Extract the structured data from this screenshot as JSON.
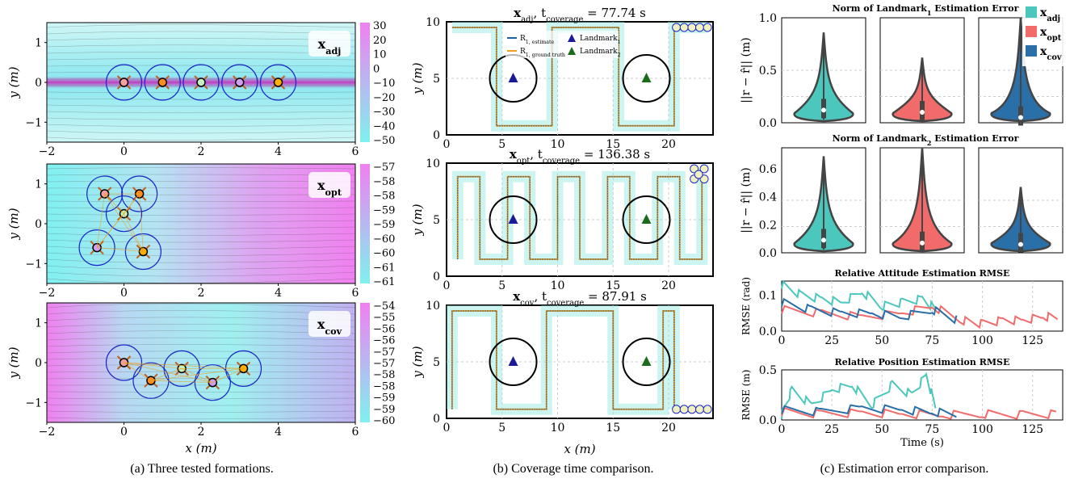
{
  "captions": {
    "a": "(a) Three tested formations.",
    "b": "(b) Coverage time comparison.",
    "c": "(c) Estimation error comparison."
  },
  "chart_data": [
    {
      "id": "a",
      "type": "heatmap",
      "xlabel": "x (m)",
      "ylabel": "y (m)",
      "xlim": [
        -2,
        6
      ],
      "ylim": [
        -1.5,
        1.5
      ],
      "xticks": [
        "−2",
        "0",
        "2",
        "4",
        "6"
      ],
      "yticks": [
        "−1",
        "0",
        "1"
      ],
      "panels": [
        {
          "label": "x",
          "sub": "adj",
          "colorbar": [
            "30",
            "20",
            "10",
            "0",
            "−10",
            "−20",
            "−30",
            "−40",
            "−50"
          ],
          "colors": [
            "#f080f0",
            "#9fdff0",
            "#7fe7f0"
          ],
          "agents": [
            [
              0,
              0
            ],
            [
              1,
              0
            ],
            [
              2,
              0
            ],
            [
              3,
              0
            ],
            [
              4,
              0
            ]
          ],
          "agent_colors": [
            "#f3a0a0",
            "#ff8c1a",
            "#c7f0c0",
            "#d0a0f0",
            "#ffb000"
          ]
        },
        {
          "label": "x",
          "sub": "opt",
          "colorbar": [
            "−57",
            "−58",
            "−58",
            "−59",
            "−59",
            "−60",
            "−60",
            "−61",
            "−61"
          ],
          "colors": [
            "#7ff0f0",
            "#b0dff0",
            "#f080f0"
          ],
          "agents": [
            [
              -0.5,
              0.75
            ],
            [
              0.4,
              0.75
            ],
            [
              0,
              0.25
            ],
            [
              -0.7,
              -0.6
            ],
            [
              0.5,
              -0.7
            ]
          ],
          "agent_colors": [
            "#f3a0a0",
            "#ff8c1a",
            "#c7f0c0",
            "#d0a0f0",
            "#ffb000"
          ]
        },
        {
          "label": "x",
          "sub": "cov",
          "colorbar": [
            "−54",
            "−55",
            "−56",
            "−56",
            "−57",
            "−57",
            "−58",
            "−58",
            "−59",
            "−59",
            "−60"
          ],
          "colors": [
            "#f080f0",
            "#a0e0f0",
            "#7ff0f0"
          ],
          "agents": [
            [
              0,
              0
            ],
            [
              0.7,
              -0.45
            ],
            [
              1.5,
              -0.15
            ],
            [
              2.3,
              -0.5
            ],
            [
              3.1,
              -0.15
            ]
          ],
          "agent_colors": [
            "#f3a0a0",
            "#ff8c1a",
            "#c7f0c0",
            "#d0a0f0",
            "#ffb000"
          ]
        }
      ]
    },
    {
      "id": "b",
      "type": "line",
      "xlabel": "x (m)",
      "ylabel": "y (m)",
      "xlim": [
        0,
        24
      ],
      "ylim": [
        0,
        10
      ],
      "xticks": [
        "0",
        "5",
        "10",
        "15",
        "20"
      ],
      "yticks": [
        "0",
        "5",
        "10"
      ],
      "landmarks": [
        {
          "name": "Landmark1",
          "x": 6,
          "y": 5,
          "color": "#1a1a99"
        },
        {
          "name": "Landmark2",
          "x": 18,
          "y": 5,
          "color": "#1a6b1a"
        }
      ],
      "legend": [
        "R1, estimate",
        "R1, ground truth",
        "Landmark",
        "Landmark"
      ],
      "legend_sub": [
        "1",
        "1",
        "1",
        "2"
      ],
      "panels": [
        {
          "title": "x",
          "title_sub": "adj",
          "t_sub": "coverage",
          "t_value": "77.74 s",
          "path": [
            [
              0.5,
              9.5
            ],
            [
              4.5,
              9.5
            ],
            [
              4.5,
              0.8
            ],
            [
              9.5,
              0.8
            ],
            [
              9.5,
              9.5
            ],
            [
              15.5,
              9.5
            ],
            [
              15.5,
              0.8
            ],
            [
              20.5,
              0.8
            ],
            [
              20.5,
              9.5
            ],
            [
              23.5,
              9.5
            ]
          ]
        },
        {
          "title": "x",
          "title_sub": "opt",
          "t_sub": "coverage",
          "t_value": "136.38 s",
          "path": [
            [
              1,
              1.5
            ],
            [
              1,
              8.8
            ],
            [
              3,
              8.8
            ],
            [
              3,
              1.5
            ],
            [
              5.5,
              1.5
            ],
            [
              5.5,
              8.8
            ],
            [
              7.5,
              8.8
            ],
            [
              7.5,
              1.5
            ],
            [
              10,
              1.5
            ],
            [
              10,
              8.8
            ],
            [
              12,
              8.8
            ],
            [
              12,
              1.5
            ],
            [
              14.5,
              1.5
            ],
            [
              14.5,
              8.8
            ],
            [
              16.5,
              8.8
            ],
            [
              16.5,
              1.5
            ],
            [
              19,
              1.5
            ],
            [
              19,
              8.8
            ],
            [
              21,
              8.8
            ],
            [
              21,
              1.5
            ],
            [
              23,
              1.5
            ],
            [
              23,
              8.8
            ]
          ]
        },
        {
          "title": "x",
          "title_sub": "cov",
          "t_sub": "coverage",
          "t_value": "87.91 s",
          "path": [
            [
              0.5,
              0.8
            ],
            [
              0.5,
              9.5
            ],
            [
              4.5,
              9.5
            ],
            [
              4.5,
              0.8
            ],
            [
              9,
              0.8
            ],
            [
              9,
              9.5
            ],
            [
              15,
              9.5
            ],
            [
              15,
              0.8
            ],
            [
              19.5,
              0.8
            ],
            [
              19.5,
              9.5
            ],
            [
              20.5,
              9.5
            ],
            [
              20.5,
              0.8
            ]
          ]
        }
      ]
    },
    {
      "id": "c1",
      "type": "violin",
      "title": "Norm of Landmark",
      "title_sub": "1",
      "title_tail": " Estimation Error",
      "ylabel": "||r − r̂|| (m)",
      "ylim": [
        0,
        1.0
      ],
      "yticks": [
        "0.0",
        "0.5",
        "1.0"
      ],
      "series": [
        {
          "name": "x_adj",
          "median": 0.12,
          "max": 0.86,
          "color": "#4cc7bd"
        },
        {
          "name": "x_opt",
          "median": 0.1,
          "max": 0.62,
          "color": "#f26b6b"
        },
        {
          "name": "x_cov",
          "median": 0.05,
          "max": 1.0,
          "color": "#2a6fa8"
        }
      ],
      "legend": [
        {
          "label": "x",
          "sub": "adj",
          "color": "#4cc7bd"
        },
        {
          "label": "x",
          "sub": "opt",
          "color": "#f26b6b"
        },
        {
          "label": "x",
          "sub": "cov",
          "color": "#2a6fa8"
        }
      ]
    },
    {
      "id": "c2",
      "type": "violin",
      "title": "Norm of Landmark",
      "title_sub": "2",
      "title_tail": " Estimation Error",
      "ylabel": "||r − r̂|| (m)",
      "ylim": [
        0,
        0.75
      ],
      "yticks": [
        "0.0",
        "0.2",
        "0.4",
        "0.6"
      ],
      "series": [
        {
          "name": "x_adj",
          "median": 0.09,
          "max": 0.69,
          "color": "#4cc7bd"
        },
        {
          "name": "x_opt",
          "median": 0.07,
          "max": 0.75,
          "color": "#f26b6b"
        },
        {
          "name": "x_cov",
          "median": 0.06,
          "max": 0.47,
          "color": "#2a6fa8"
        }
      ]
    },
    {
      "id": "c3",
      "type": "line",
      "title": "Relative Attitude Estimation RMSE",
      "ylabel": "RMSE (rad)",
      "xlim": [
        0,
        140
      ],
      "ylim": [
        0,
        0.14
      ],
      "yticks": [
        "0.0",
        "0.1"
      ],
      "xticks": [
        "0",
        "25",
        "50",
        "75",
        "100",
        "125"
      ],
      "series": [
        {
          "name": "x_adj",
          "color": "#4cc7bd",
          "x": [
            0,
            10,
            20,
            30,
            40,
            50,
            60,
            70,
            77
          ],
          "y": [
            0.13,
            0.1,
            0.09,
            0.08,
            0.11,
            0.07,
            0.08,
            0.09,
            0.06
          ]
        },
        {
          "name": "x_opt",
          "color": "#f26b6b",
          "x": [
            0,
            20,
            40,
            60,
            75,
            90,
            100,
            110,
            120,
            130,
            138
          ],
          "y": [
            0.06,
            0.05,
            0.04,
            0.05,
            0.07,
            0.03,
            0.02,
            0.03,
            0.03,
            0.04,
            0.04
          ]
        },
        {
          "name": "x_cov",
          "color": "#2a6fa8",
          "x": [
            0,
            15,
            30,
            45,
            60,
            75,
            88
          ],
          "y": [
            0.08,
            0.06,
            0.05,
            0.05,
            0.04,
            0.06,
            0.03
          ]
        }
      ]
    },
    {
      "id": "c4",
      "type": "line",
      "title": "Relative Position Estimation RMSE",
      "ylabel": "RMSE (m)",
      "xlabel": "Time (s)",
      "xlim": [
        0,
        140
      ],
      "ylim": [
        0,
        0.5
      ],
      "yticks": [
        "0.0",
        "0.5"
      ],
      "xticks": [
        "0",
        "25",
        "50",
        "75",
        "100",
        "125"
      ],
      "series": [
        {
          "name": "x_adj",
          "color": "#4cc7bd",
          "x": [
            0,
            5,
            15,
            25,
            35,
            45,
            55,
            65,
            72,
            77
          ],
          "y": [
            0.05,
            0.3,
            0.15,
            0.3,
            0.35,
            0.15,
            0.35,
            0.25,
            0.45,
            0.1
          ]
        },
        {
          "name": "x_opt",
          "color": "#f26b6b",
          "x": [
            0,
            20,
            40,
            60,
            80,
            100,
            120,
            138
          ],
          "y": [
            0.08,
            0.06,
            0.07,
            0.06,
            0.05,
            0.06,
            0.05,
            0.06
          ]
        },
        {
          "name": "x_cov",
          "color": "#2a6fa8",
          "x": [
            0,
            20,
            40,
            60,
            75,
            88
          ],
          "y": [
            0.1,
            0.08,
            0.12,
            0.1,
            0.08,
            0.06
          ]
        }
      ]
    }
  ]
}
